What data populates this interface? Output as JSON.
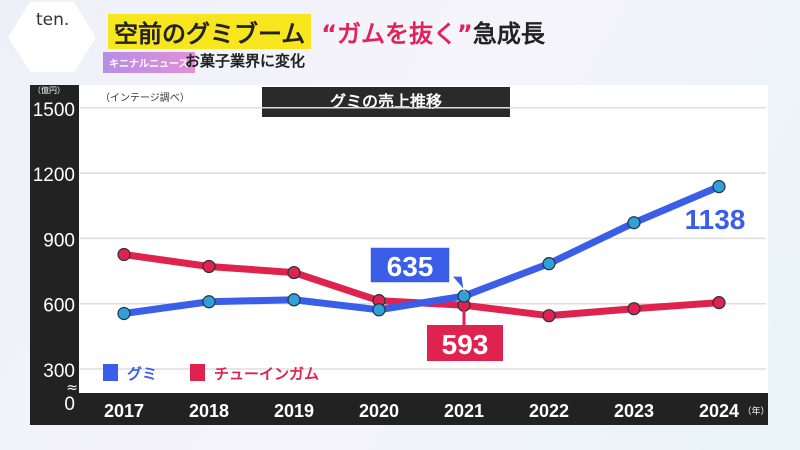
{
  "header": {
    "logo": "ten.",
    "title_highlight": "空前のグミブーム",
    "title_quote": "“ガムを抜く”",
    "title_rest": "急成長",
    "tag": "キニナルニュース",
    "subtitle": "お菓子業界に変化"
  },
  "chart_data": {
    "type": "line",
    "title": "グミの売上推移",
    "source": "（インテージ調べ）",
    "yunit": "（億円）",
    "xunit": "（年）",
    "categories": [
      "2017",
      "2018",
      "2019",
      "2020",
      "2021",
      "2022",
      "2023",
      "2024"
    ],
    "yticks": [
      "0",
      "300",
      "600",
      "900",
      "1200",
      "1500"
    ],
    "ylim": [
      300,
      1500
    ],
    "axis_break": true,
    "grid": true,
    "legend": "bottom-left",
    "series": [
      {
        "name": "グミ",
        "color": "#3b5ee8",
        "values": [
          555,
          609,
          618,
          572,
          635,
          784,
          972,
          1138
        ]
      },
      {
        "name": "チューインガム",
        "color": "#e0224e",
        "values": [
          826,
          771,
          743,
          614,
          593,
          545,
          577,
          605
        ]
      }
    ],
    "annotations": [
      {
        "text": "635",
        "series": 0,
        "index": 4
      },
      {
        "text": "593",
        "series": 1,
        "index": 4
      },
      {
        "text": "1138",
        "series": 0,
        "index": 7
      }
    ]
  }
}
